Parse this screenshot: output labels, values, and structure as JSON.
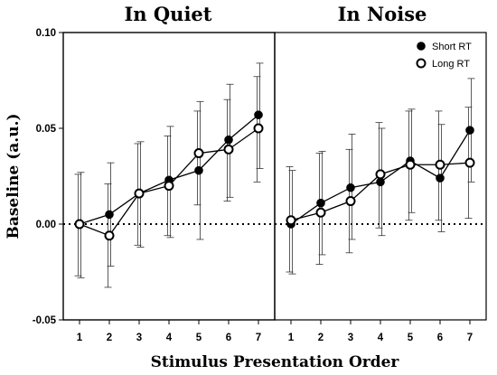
{
  "chart_data": [
    {
      "type": "line",
      "title": "In Quiet",
      "x": [
        1,
        2,
        3,
        4,
        5,
        6,
        7
      ],
      "ylim": [
        -0.05,
        0.1
      ],
      "yticks": [
        "-0.05",
        "0.00",
        "0.05",
        "0.10"
      ],
      "reference_line": 0.0,
      "series": [
        {
          "name": "Short RT",
          "marker": "filled-circle",
          "color": "#000000",
          "values": [
            0.0,
            0.005,
            0.016,
            0.023,
            0.028,
            0.044,
            0.057
          ],
          "error_low": [
            -0.028,
            -0.022,
            -0.012,
            -0.007,
            -0.008,
            0.014,
            0.029
          ],
          "error_high": [
            0.027,
            0.032,
            0.043,
            0.051,
            0.064,
            0.073,
            0.084
          ]
        },
        {
          "name": "Long RT",
          "marker": "open-circle",
          "color": "#000000",
          "values": [
            0.0,
            -0.006,
            0.016,
            0.02,
            0.037,
            0.039,
            0.05
          ],
          "error_low": [
            -0.027,
            -0.033,
            -0.011,
            -0.006,
            0.01,
            0.012,
            0.022
          ],
          "error_high": [
            0.026,
            0.021,
            0.042,
            0.046,
            0.059,
            0.065,
            0.077
          ]
        }
      ]
    },
    {
      "type": "line",
      "title": "In Noise",
      "x": [
        1,
        2,
        3,
        4,
        5,
        6,
        7
      ],
      "ylim": [
        -0.05,
        0.1
      ],
      "reference_line": 0.0,
      "legend": {
        "position": "top-right",
        "entries": [
          "Short RT",
          "Long RT"
        ]
      },
      "series": [
        {
          "name": "Short RT",
          "marker": "filled-circle",
          "color": "#000000",
          "values": [
            0.0,
            0.011,
            0.019,
            0.022,
            0.033,
            0.024,
            0.049
          ],
          "error_low": [
            -0.026,
            -0.016,
            -0.008,
            -0.006,
            0.006,
            -0.004,
            0.022
          ],
          "error_high": [
            0.028,
            0.038,
            0.047,
            0.05,
            0.06,
            0.052,
            0.076
          ]
        },
        {
          "name": "Long RT",
          "marker": "open-circle",
          "color": "#000000",
          "values": [
            0.002,
            0.006,
            0.012,
            0.026,
            0.031,
            0.031,
            0.032
          ],
          "error_low": [
            -0.025,
            -0.021,
            -0.015,
            -0.002,
            0.002,
            0.002,
            0.003
          ],
          "error_high": [
            0.03,
            0.037,
            0.039,
            0.053,
            0.059,
            0.059,
            0.061
          ]
        }
      ]
    }
  ],
  "labels": {
    "ylabel": "Baseline (a.u.)",
    "xlabel": "Stimulus Presentation Order"
  }
}
